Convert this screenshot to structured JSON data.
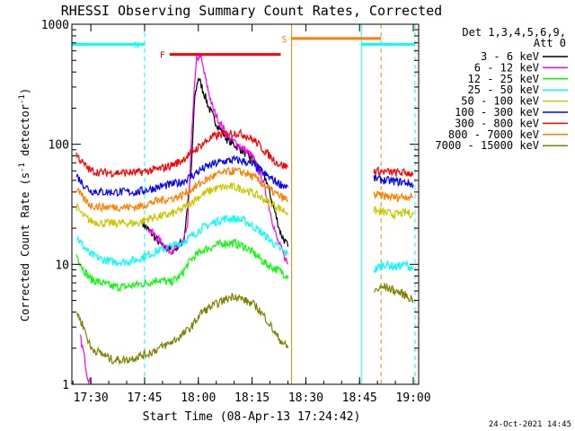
{
  "chart_data": {
    "type": "line",
    "title": "RHESSI Observing Summary Count Rates, Corrected",
    "xlabel": "Start Time (08-Apr-13 17:24:42)",
    "ylabel": "Corrected Count Rate (s",
    "ylabel_sup1": "-1",
    "ylabel_mid": " detector",
    "ylabel_sup2": "-1",
    "ylabel_end": ")",
    "y_scale": "log",
    "xlim": [
      "17:24:42",
      "19:01:30"
    ],
    "ylim": [
      1,
      1000
    ],
    "x_ticks": [
      "17:30",
      "17:45",
      "18:00",
      "18:15",
      "18:30",
      "18:45",
      "19:00"
    ],
    "y_ticks": [
      "1",
      "10",
      "100",
      "1000"
    ],
    "legend_header": [
      "Det 1,3,4,5,6,9,",
      "Att 0"
    ],
    "legend_position": "right",
    "timestamp": "24-Oct-2021 14:45",
    "series": [
      {
        "name": "3 - 6 keV",
        "color": "#000000",
        "segments": [
          {
            "x": [
              "17:44:30",
              "17:47:00",
              "17:50:00",
              "17:53:00",
              "17:56:00",
              "17:58:00",
              "17:59:00",
              "18:00:00",
              "18:01:00",
              "18:03:00",
              "18:05:00",
              "18:08:00",
              "18:12:00",
              "18:16:00",
              "18:19:00",
              "18:21:00",
              "18:23:00",
              "18:25:00"
            ],
            "y": [
              22,
              18,
              14,
              13,
              16,
              60,
              250,
              360,
              300,
              200,
              150,
              110,
              90,
              70,
              50,
              30,
              18,
              14
            ]
          }
        ]
      },
      {
        "name": "6 - 12 keV",
        "color": "#ff00ff",
        "segments": [
          {
            "x": [
              "17:27:00",
              "17:28:00",
              "17:29:00",
              "17:30:00"
            ],
            "y": [
              2.5,
              1.8,
              1.2,
              1.0
            ]
          },
          {
            "x": [
              "17:46:00",
              "17:49:00",
              "17:52:00",
              "17:55:00",
              "17:57:00",
              "17:58:30",
              "17:59:30",
              "18:00:30",
              "18:02:00",
              "18:04:00",
              "18:06:00",
              "18:09:00",
              "18:12:00",
              "18:15:00",
              "18:18:00",
              "18:20:00",
              "18:22:00",
              "18:25:00"
            ],
            "y": [
              20,
              16,
              13,
              14,
              20,
              200,
              500,
              560,
              350,
              200,
              150,
              110,
              95,
              80,
              50,
              28,
              16,
              10
            ]
          }
        ]
      },
      {
        "name": "12 - 25 keV",
        "color": "#00ff00",
        "segments": [
          {
            "x": [
              "17:26:00",
              "17:28:00",
              "17:30:00",
              "17:33:00",
              "17:36:00",
              "17:40:00",
              "17:43:00",
              "17:46:00",
              "17:49:00",
              "17:52:00",
              "17:55:00",
              "17:58:00",
              "18:01:00",
              "18:04:00",
              "18:07:00",
              "18:10:00",
              "18:13:00",
              "18:16:00",
              "18:19:00",
              "18:22:00",
              "18:25:00"
            ],
            "y": [
              12,
              9,
              7.5,
              7,
              6.5,
              6.5,
              6.8,
              7,
              7.5,
              7,
              8,
              11,
              13,
              14,
              15,
              15,
              14,
              12,
              10,
              9,
              8
            ]
          }
        ]
      },
      {
        "name": "25 - 50 keV",
        "color": "#00ffff",
        "segments": [
          {
            "x": [
              "17:26:00",
              "17:28:00",
              "17:30:00",
              "17:33:00",
              "17:36:00",
              "17:40:00",
              "17:43:00",
              "17:46:00",
              "17:49:00",
              "17:52:00",
              "17:55:00",
              "17:58:00",
              "18:01:00",
              "18:04:00",
              "18:07:00",
              "18:10:00",
              "18:13:00",
              "18:16:00",
              "18:19:00",
              "18:22:00",
              "18:25:00"
            ],
            "y": [
              17,
              14,
              12,
              11,
              10.5,
              10.5,
              11,
              12,
              13,
              14,
              15,
              17,
              20,
              22,
              24,
              24,
              23,
              20,
              17,
              14,
              12
            ]
          },
          {
            "x": [
              "18:49:00",
              "18:52:00",
              "18:55:00",
              "18:58:00",
              "19:00:00"
            ],
            "y": [
              9,
              10,
              9.5,
              10,
              9
            ]
          }
        ]
      },
      {
        "name": "50 - 100 keV",
        "color": "#c8c800",
        "segments": [
          {
            "x": [
              "17:26:00",
              "17:28:00",
              "17:30:00",
              "17:33:00",
              "17:36:00",
              "17:40:00",
              "17:43:00",
              "17:46:00",
              "17:49:00",
              "17:52:00",
              "17:55:00",
              "17:58:00",
              "18:01:00",
              "18:04:00",
              "18:07:00",
              "18:10:00",
              "18:13:00",
              "18:16:00",
              "18:19:00",
              "18:22:00",
              "18:25:00"
            ],
            "y": [
              30,
              25,
              23,
              22,
              22,
              22,
              22,
              24,
              25,
              26,
              28,
              33,
              38,
              42,
              44,
              44,
              42,
              38,
              34,
              30,
              27
            ]
          },
          {
            "x": [
              "18:49:00",
              "18:52:00",
              "18:55:00",
              "18:58:00",
              "19:00:00"
            ],
            "y": [
              28,
              27,
              26,
              27,
              26
            ]
          }
        ]
      },
      {
        "name": "100 - 300 keV",
        "color": "#0000ff",
        "segments": [
          {
            "x": [
              "17:26:00",
              "17:28:00",
              "17:30:00",
              "17:33:00",
              "17:36:00",
              "17:40:00",
              "17:43:00",
              "17:46:00",
              "17:49:00",
              "17:52:00",
              "17:55:00",
              "17:58:00",
              "18:01:00",
              "18:04:00",
              "18:07:00",
              "18:10:00",
              "18:13:00",
              "18:16:00",
              "18:19:00",
              "18:22:00",
              "18:25:00"
            ],
            "y": [
              55,
              46,
              41,
              40,
              40,
              40,
              40,
              42,
              44,
              46,
              48,
              54,
              62,
              68,
              72,
              74,
              72,
              65,
              55,
              48,
              44
            ]
          },
          {
            "x": [
              "18:49:00",
              "18:52:00",
              "18:55:00",
              "18:58:00",
              "19:00:00"
            ],
            "y": [
              52,
              50,
              49,
              48,
              46
            ]
          }
        ]
      },
      {
        "name": "300 - 800 keV",
        "color": "#ff0000",
        "segments": [
          {
            "x": [
              "17:26:00",
              "17:28:00",
              "17:30:00",
              "17:33:00",
              "17:36:00",
              "17:40:00",
              "17:43:00",
              "17:46:00",
              "17:49:00",
              "17:52:00",
              "17:55:00",
              "17:58:00",
              "18:01:00",
              "18:04:00",
              "18:07:00",
              "18:10:00",
              "18:13:00",
              "18:16:00",
              "18:19:00",
              "18:22:00",
              "18:25:00"
            ],
            "y": [
              82,
              68,
              60,
              58,
              58,
              58,
              58,
              60,
              62,
              66,
              72,
              85,
              100,
              115,
              122,
              125,
              120,
              105,
              85,
              70,
              64
            ]
          },
          {
            "x": [
              "18:49:00",
              "18:52:00",
              "18:55:00",
              "18:58:00",
              "19:00:00"
            ],
            "y": [
              60,
              59,
              58,
              58,
              57
            ]
          }
        ]
      },
      {
        "name": "800 - 7000 keV",
        "color": "#ff8000",
        "segments": [
          {
            "x": [
              "17:26:00",
              "17:28:00",
              "17:30:00",
              "17:33:00",
              "17:36:00",
              "17:40:00",
              "17:43:00",
              "17:46:00",
              "17:49:00",
              "17:52:00",
              "17:55:00",
              "17:58:00",
              "18:01:00",
              "18:04:00",
              "18:07:00",
              "18:10:00",
              "18:13:00",
              "18:16:00",
              "18:19:00",
              "18:22:00",
              "18:25:00"
            ],
            "y": [
              42,
              35,
              31,
              30,
              30,
              30,
              30,
              32,
              34,
              35,
              37,
              42,
              48,
              54,
              58,
              60,
              58,
              52,
              44,
              38,
              34
            ]
          },
          {
            "x": [
              "18:49:00",
              "18:52:00",
              "18:55:00",
              "18:58:00",
              "19:00:00"
            ],
            "y": [
              38,
              37,
              36,
              37,
              36
            ]
          }
        ]
      },
      {
        "name": "7000 - 15000 keV",
        "color": "#808000",
        "segments": [
          {
            "x": [
              "17:26:00",
              "17:28:00",
              "17:30:00",
              "17:33:00",
              "17:36:00",
              "17:40:00",
              "17:43:00",
              "17:46:00",
              "17:49:00",
              "17:52:00",
              "17:55:00",
              "17:58:00",
              "18:01:00",
              "18:04:00",
              "18:07:00",
              "18:10:00",
              "18:13:00",
              "18:16:00",
              "18:19:00",
              "18:22:00",
              "18:25:00"
            ],
            "y": [
              4,
              3,
              2,
              1.8,
              1.6,
              1.6,
              1.7,
              1.8,
              2,
              2.2,
              2.5,
              3,
              4,
              4.5,
              5,
              5.5,
              5,
              4.5,
              3.5,
              2.5,
              2
            ]
          },
          {
            "x": [
              "18:49:00",
              "18:52:00",
              "18:55:00",
              "18:58:00",
              "19:00:00"
            ],
            "y": [
              6,
              6.5,
              6,
              5.5,
              5
            ]
          }
        ]
      }
    ],
    "bars": [
      {
        "label": "N",
        "color": "#00ffff",
        "y": 680,
        "segments": [
          [
            "17:24:42",
            "17:45:00"
          ],
          [
            "18:45:30",
            "19:00:30"
          ]
        ]
      },
      {
        "label": "F",
        "color": "#ff0000",
        "y": 560,
        "segments": [
          [
            "17:52:00",
            "18:23:00"
          ]
        ]
      },
      {
        "label": "S",
        "color": "#ff8000",
        "y": 760,
        "segments": [
          [
            "18:26:00",
            "18:51:00"
          ]
        ]
      }
    ],
    "vlines": [
      {
        "x": "17:45:00",
        "color": "#00ffff",
        "style": "dashed"
      },
      {
        "x": "18:26:00",
        "color": "#ff8000",
        "style": "solid"
      },
      {
        "x": "18:45:30",
        "color": "#00ffff",
        "style": "solid"
      },
      {
        "x": "18:51:00",
        "color": "#ff8000",
        "style": "dashed"
      },
      {
        "x": "19:00:30",
        "color": "#00ffff",
        "style": "dashed"
      }
    ]
  }
}
